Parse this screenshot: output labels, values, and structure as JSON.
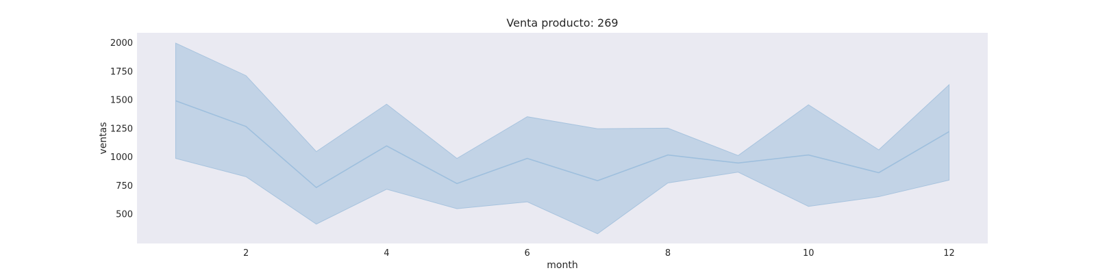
{
  "chart_data": {
    "type": "line",
    "title": "Venta producto: 269",
    "xlabel": "month",
    "ylabel": "ventas",
    "x": [
      1,
      2,
      3,
      4,
      5,
      6,
      7,
      8,
      9,
      10,
      11,
      12
    ],
    "series": [
      {
        "values": [
          1490,
          1265,
          730,
          1095,
          765,
          985,
          790,
          1015,
          945,
          1015,
          860,
          1220
        ],
        "lower": [
          985,
          825,
          410,
          715,
          545,
          605,
          325,
          770,
          865,
          565,
          650,
          795
        ],
        "upper": [
          1995,
          1710,
          1045,
          1460,
          985,
          1350,
          1245,
          1250,
          1010,
          1455,
          1060,
          1630
        ]
      }
    ],
    "xticks": [
      2,
      4,
      6,
      8,
      10,
      12
    ],
    "yticks": [
      500,
      750,
      1000,
      1250,
      1500,
      1750,
      2000
    ],
    "xlim": [
      0.45,
      12.55
    ],
    "ylim": [
      240,
      2085
    ],
    "grid": false,
    "colors": {
      "line": "#9ebfdd",
      "band": "#a7c3de",
      "background": "#eaeaf2"
    }
  }
}
